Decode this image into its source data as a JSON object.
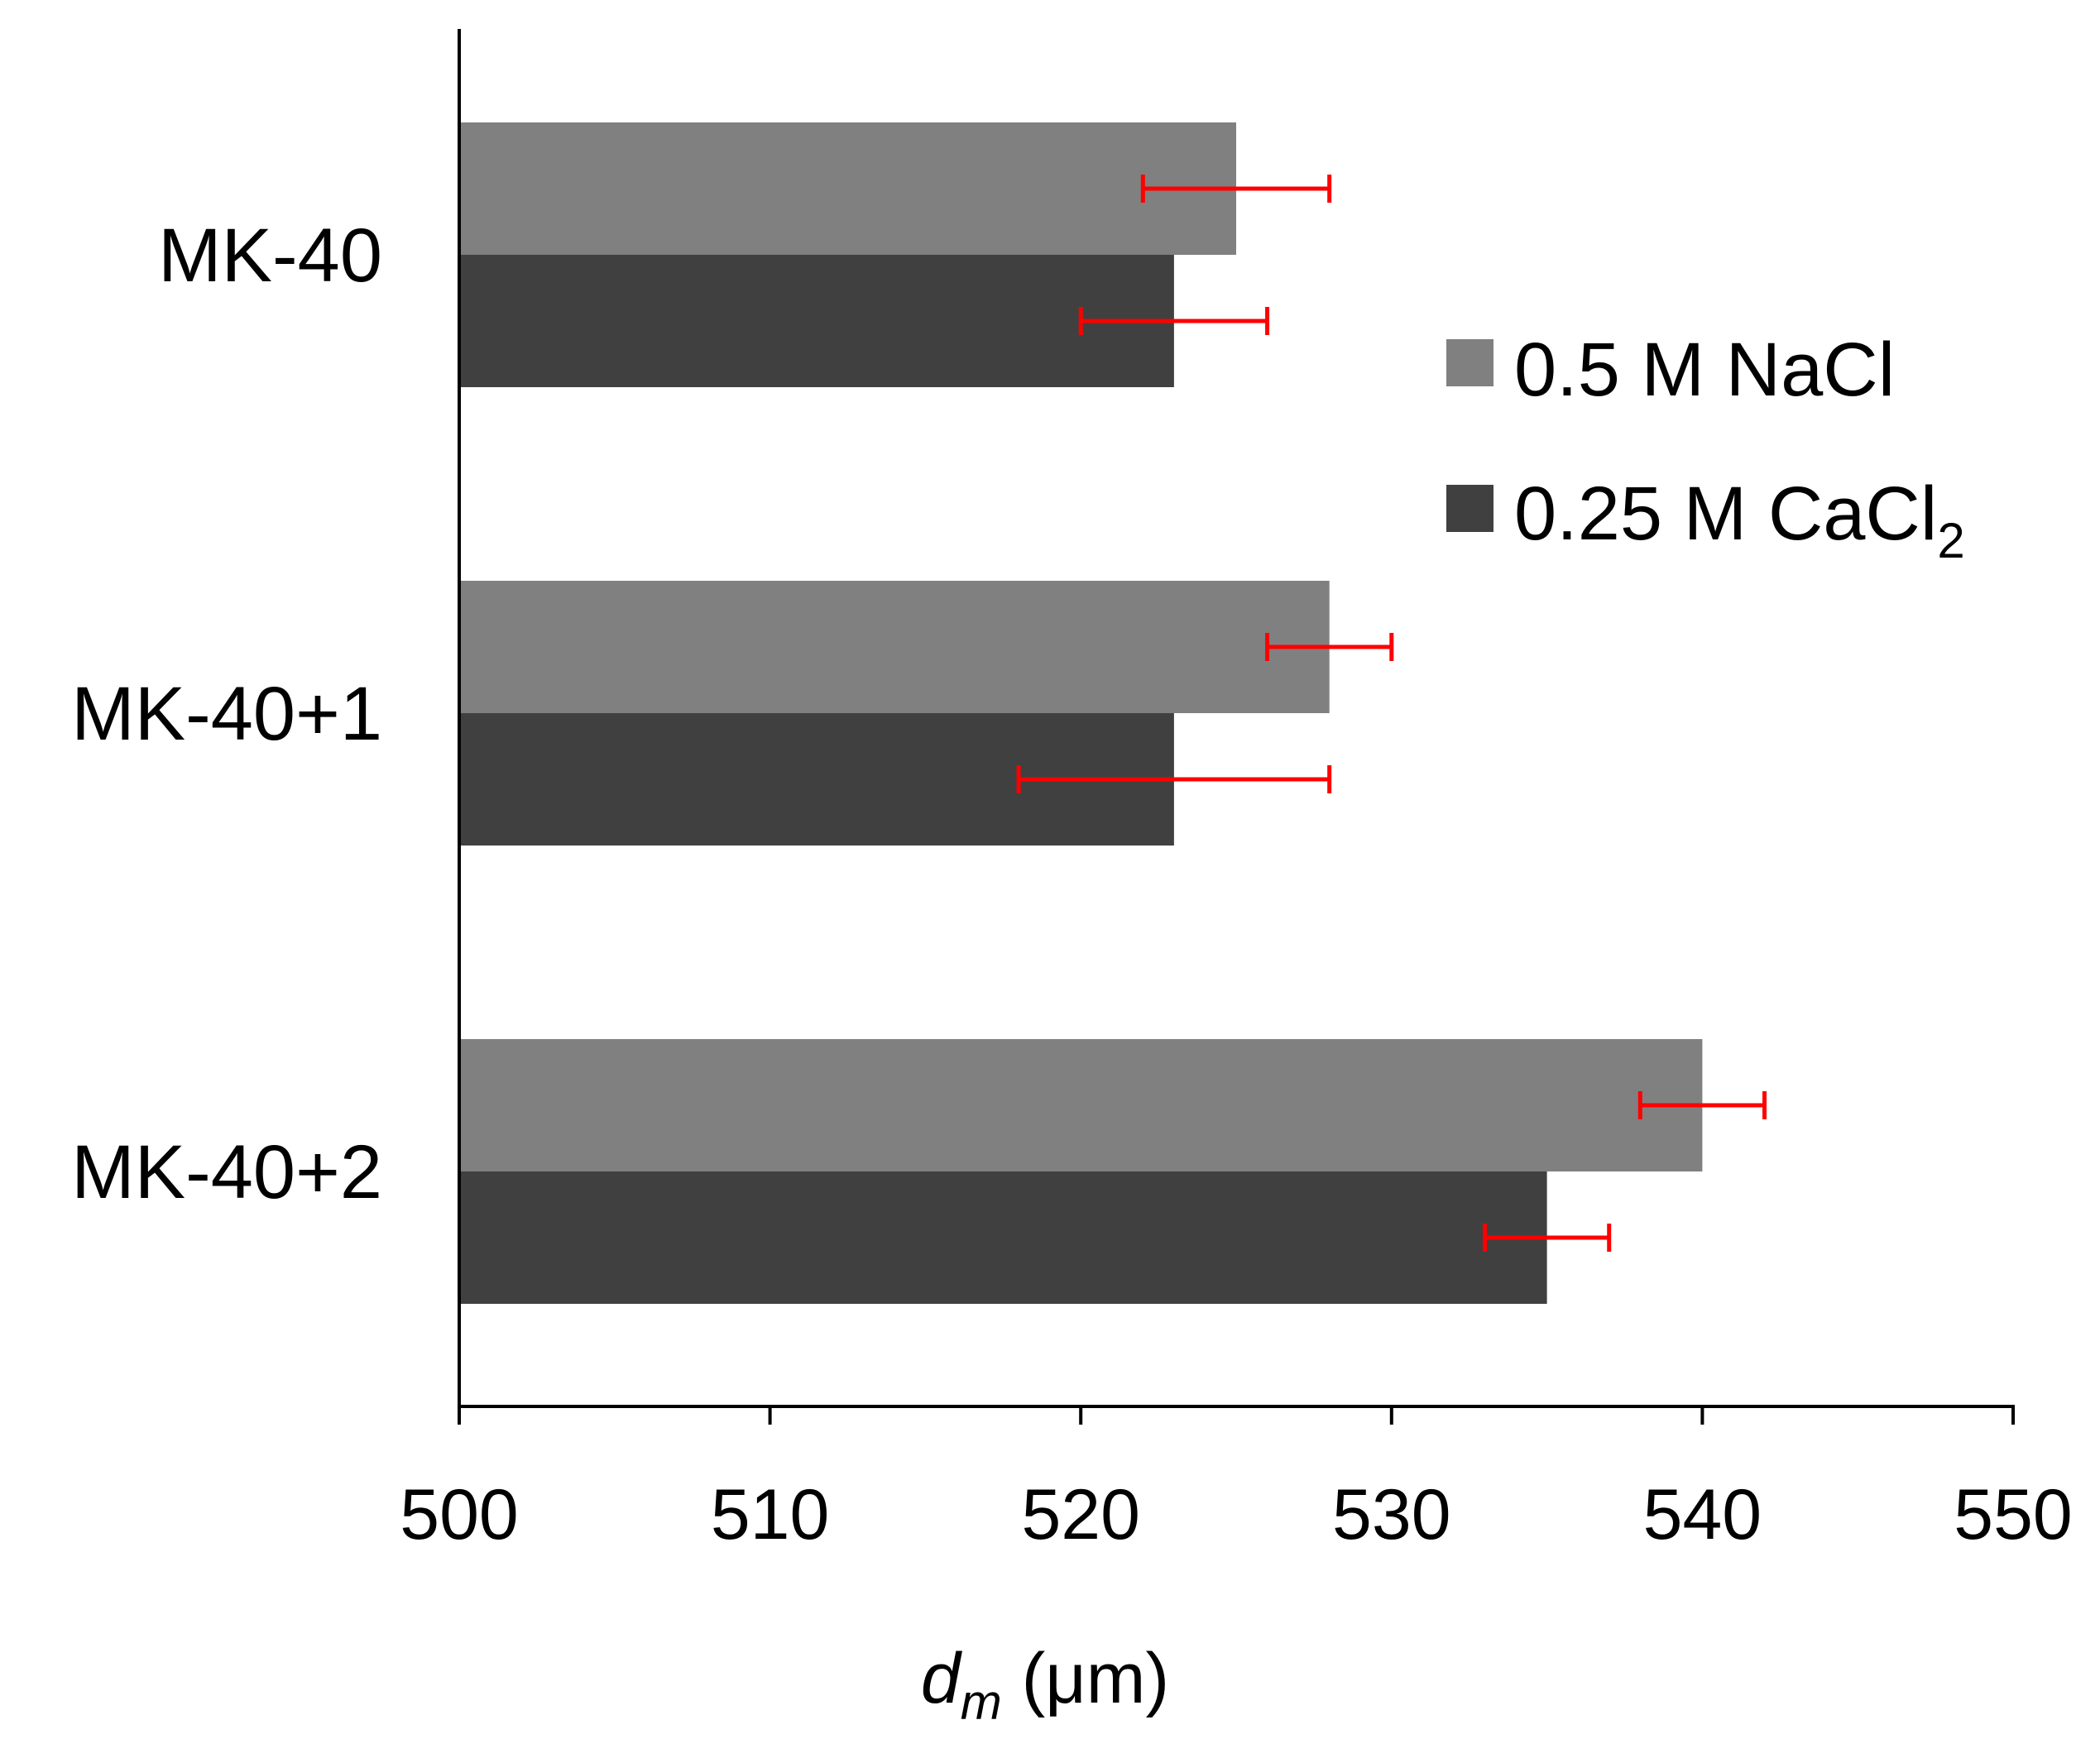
{
  "chart_data": {
    "type": "bar",
    "orientation": "horizontal",
    "categories": [
      "MK-40",
      "MK-40+1",
      "MK-40+2"
    ],
    "series": [
      {
        "name": "0.5 M NaCl",
        "color": "#808080",
        "values": [
          525,
          528,
          540
        ],
        "errors": [
          [
            522,
            528
          ],
          [
            526,
            530
          ],
          [
            538,
            542
          ]
        ]
      },
      {
        "name": "0.25 M CaCl2",
        "name_main": "0.25 M CaCl",
        "name_sub": "2",
        "color": "#404040",
        "values": [
          523,
          523,
          535
        ],
        "errors": [
          [
            520,
            526
          ],
          [
            518,
            528
          ],
          [
            533,
            537
          ]
        ]
      }
    ],
    "error_bar_color": "#ff0000",
    "xlim": [
      500,
      550
    ],
    "xticks": [
      500,
      510,
      520,
      530,
      540,
      550
    ],
    "xlabel_var": "d",
    "xlabel_sub": "m",
    "xlabel_unit": " (μm)",
    "legend_position": "right"
  }
}
